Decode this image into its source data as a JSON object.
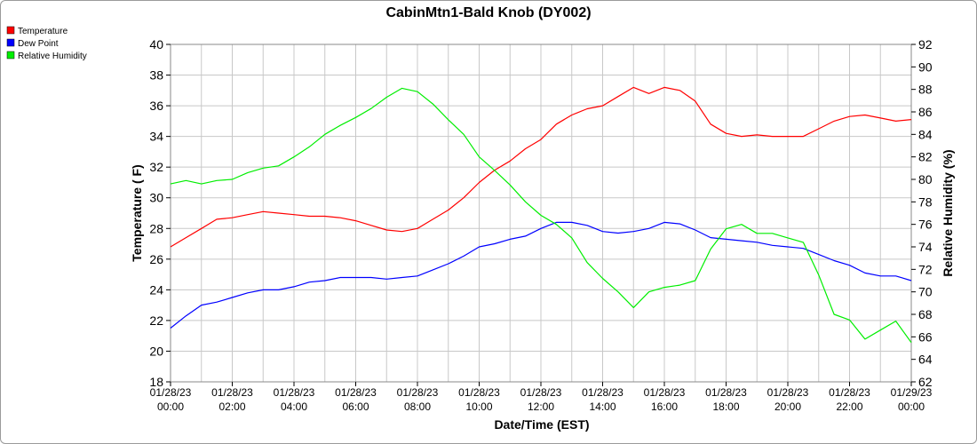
{
  "chart_data": {
    "type": "line",
    "title": "CabinMtn1-Bald Knob (DY002)",
    "xlabel": "Date/Time (EST)",
    "ylabel": "Temperature ( F)",
    "y2label": "Relative Humidity (%)",
    "ylim": [
      18,
      40
    ],
    "y_ticks": [
      18,
      20,
      22,
      24,
      26,
      28,
      30,
      32,
      34,
      36,
      38,
      40
    ],
    "y2lim": [
      62,
      92
    ],
    "y2_ticks": [
      62,
      64,
      66,
      68,
      70,
      72,
      74,
      76,
      78,
      80,
      82,
      84,
      86,
      88,
      90,
      92
    ],
    "xlim_hours": [
      0,
      24
    ],
    "x_ticks": [
      {
        "hour": 0,
        "date": "01/28/23",
        "time": "00:00"
      },
      {
        "hour": 2,
        "date": "01/28/23",
        "time": "02:00"
      },
      {
        "hour": 4,
        "date": "01/28/23",
        "time": "04:00"
      },
      {
        "hour": 6,
        "date": "01/28/23",
        "time": "06:00"
      },
      {
        "hour": 8,
        "date": "01/28/23",
        "time": "08:00"
      },
      {
        "hour": 10,
        "date": "01/28/23",
        "time": "10:00"
      },
      {
        "hour": 12,
        "date": "01/28/23",
        "time": "12:00"
      },
      {
        "hour": 14,
        "date": "01/28/23",
        "time": "14:00"
      },
      {
        "hour": 16,
        "date": "01/28/23",
        "time": "16:00"
      },
      {
        "hour": 18,
        "date": "01/28/23",
        "time": "18:00"
      },
      {
        "hour": 20,
        "date": "01/28/23",
        "time": "20:00"
      },
      {
        "hour": 22,
        "date": "01/28/23",
        "time": "22:00"
      },
      {
        "hour": 24,
        "date": "01/29/23",
        "time": "00:00"
      }
    ],
    "grid": true,
    "legend_position": "top-left",
    "series": [
      {
        "name": "Temperature",
        "axis": "left",
        "color": "#ff0000",
        "points": [
          [
            0,
            26.8
          ],
          [
            0.5,
            27.4
          ],
          [
            1,
            28.0
          ],
          [
            1.5,
            28.6
          ],
          [
            2,
            28.7
          ],
          [
            2.5,
            28.9
          ],
          [
            3,
            29.1
          ],
          [
            3.5,
            29.0
          ],
          [
            4,
            28.9
          ],
          [
            4.5,
            28.8
          ],
          [
            5,
            28.8
          ],
          [
            5.5,
            28.7
          ],
          [
            6,
            28.5
          ],
          [
            6.5,
            28.2
          ],
          [
            7,
            27.9
          ],
          [
            7.5,
            27.8
          ],
          [
            8,
            28.0
          ],
          [
            8.5,
            28.6
          ],
          [
            9,
            29.2
          ],
          [
            9.5,
            30.0
          ],
          [
            10,
            31.0
          ],
          [
            10.5,
            31.8
          ],
          [
            11,
            32.4
          ],
          [
            11.5,
            33.2
          ],
          [
            12,
            33.8
          ],
          [
            12.5,
            34.8
          ],
          [
            13,
            35.4
          ],
          [
            13.5,
            35.8
          ],
          [
            14,
            36.0
          ],
          [
            14.5,
            36.6
          ],
          [
            15,
            37.2
          ],
          [
            15.5,
            36.8
          ],
          [
            16,
            37.2
          ],
          [
            16.5,
            37.0
          ],
          [
            17,
            36.3
          ],
          [
            17.5,
            34.8
          ],
          [
            18,
            34.2
          ],
          [
            18.5,
            34.0
          ],
          [
            19,
            34.1
          ],
          [
            19.5,
            34.0
          ],
          [
            20,
            34.0
          ],
          [
            20.5,
            34.0
          ],
          [
            21,
            34.5
          ],
          [
            21.5,
            35.0
          ],
          [
            22,
            35.3
          ],
          [
            22.5,
            35.4
          ],
          [
            23,
            35.2
          ],
          [
            23.5,
            35.0
          ],
          [
            24,
            35.1
          ]
        ]
      },
      {
        "name": "Dew Point",
        "axis": "left",
        "color": "#0000ff",
        "points": [
          [
            0,
            21.5
          ],
          [
            0.5,
            22.3
          ],
          [
            1,
            23.0
          ],
          [
            1.5,
            23.2
          ],
          [
            2,
            23.5
          ],
          [
            2.5,
            23.8
          ],
          [
            3,
            24.0
          ],
          [
            3.5,
            24.0
          ],
          [
            4,
            24.2
          ],
          [
            4.5,
            24.5
          ],
          [
            5,
            24.6
          ],
          [
            5.5,
            24.8
          ],
          [
            6,
            24.8
          ],
          [
            6.5,
            24.8
          ],
          [
            7,
            24.7
          ],
          [
            7.5,
            24.8
          ],
          [
            8,
            24.9
          ],
          [
            8.5,
            25.3
          ],
          [
            9,
            25.7
          ],
          [
            9.5,
            26.2
          ],
          [
            10,
            26.8
          ],
          [
            10.5,
            27.0
          ],
          [
            11,
            27.3
          ],
          [
            11.5,
            27.5
          ],
          [
            12,
            28.0
          ],
          [
            12.5,
            28.4
          ],
          [
            13,
            28.4
          ],
          [
            13.5,
            28.2
          ],
          [
            14,
            27.8
          ],
          [
            14.5,
            27.7
          ],
          [
            15,
            27.8
          ],
          [
            15.5,
            28.0
          ],
          [
            16,
            28.4
          ],
          [
            16.5,
            28.3
          ],
          [
            17,
            27.9
          ],
          [
            17.5,
            27.4
          ],
          [
            18,
            27.3
          ],
          [
            18.5,
            27.2
          ],
          [
            19,
            27.1
          ],
          [
            19.5,
            26.9
          ],
          [
            20,
            26.8
          ],
          [
            20.5,
            26.7
          ],
          [
            21,
            26.3
          ],
          [
            21.5,
            25.9
          ],
          [
            22,
            25.6
          ],
          [
            22.5,
            25.1
          ],
          [
            23,
            24.9
          ],
          [
            23.5,
            24.9
          ],
          [
            24,
            24.6
          ]
        ]
      },
      {
        "name": "Relative Humidity",
        "axis": "right",
        "color": "#00ee00",
        "points": [
          [
            0,
            79.6
          ],
          [
            0.5,
            79.9
          ],
          [
            1,
            79.6
          ],
          [
            1.5,
            79.9
          ],
          [
            2,
            80.0
          ],
          [
            2.5,
            80.6
          ],
          [
            3,
            81.0
          ],
          [
            3.5,
            81.2
          ],
          [
            4,
            82.0
          ],
          [
            4.5,
            82.9
          ],
          [
            5,
            84.0
          ],
          [
            5.5,
            84.8
          ],
          [
            6,
            85.5
          ],
          [
            6.5,
            86.3
          ],
          [
            7,
            87.3
          ],
          [
            7.5,
            88.1
          ],
          [
            8,
            87.8
          ],
          [
            8.5,
            86.7
          ],
          [
            9,
            85.3
          ],
          [
            9.5,
            84.0
          ],
          [
            10,
            82.0
          ],
          [
            10.5,
            80.8
          ],
          [
            11,
            79.5
          ],
          [
            11.5,
            78.0
          ],
          [
            12,
            76.8
          ],
          [
            12.5,
            76.0
          ],
          [
            13,
            74.8
          ],
          [
            13.5,
            72.6
          ],
          [
            14,
            71.2
          ],
          [
            14.5,
            70.0
          ],
          [
            15,
            68.6
          ],
          [
            15.5,
            70.0
          ],
          [
            16,
            70.4
          ],
          [
            16.5,
            70.6
          ],
          [
            17,
            71.0
          ],
          [
            17.5,
            73.8
          ],
          [
            18,
            75.6
          ],
          [
            18.5,
            76.0
          ],
          [
            19,
            75.2
          ],
          [
            19.5,
            75.2
          ],
          [
            20,
            74.8
          ],
          [
            20.5,
            74.4
          ],
          [
            21,
            71.5
          ],
          [
            21.5,
            68.0
          ],
          [
            22,
            67.5
          ],
          [
            22.5,
            65.8
          ],
          [
            23,
            66.6
          ],
          [
            23.5,
            67.4
          ],
          [
            24,
            65.5
          ]
        ]
      }
    ]
  }
}
